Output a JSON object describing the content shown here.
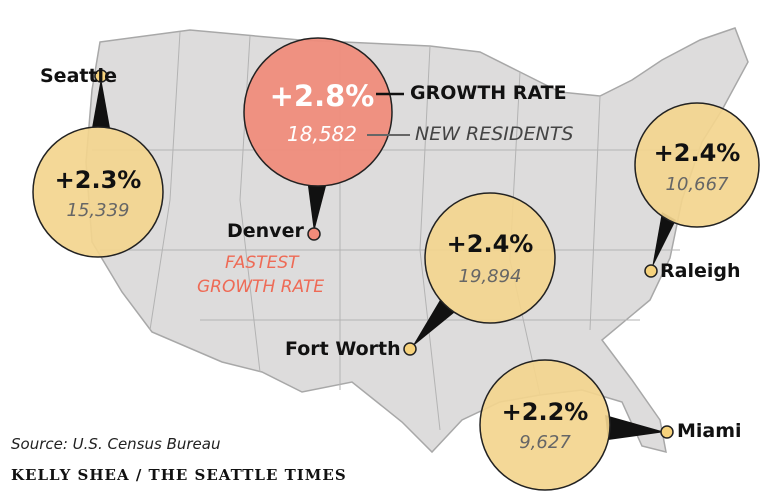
{
  "colors": {
    "map": "#dddcdc",
    "border": "#a8a8a8",
    "bubble": "#f3d58e",
    "highlight": "#f08b7a",
    "dot": "#f6d27c"
  },
  "legend": {
    "rate_label": "GROWTH RATE",
    "residents_label": "NEW RESIDENTS"
  },
  "highlight_note": {
    "line1": "FASTEST",
    "line2": "GROWTH RATE"
  },
  "cities": [
    {
      "name": "Seattle",
      "rate": "+2.3%",
      "residents": "15,339"
    },
    {
      "name": "Denver",
      "rate": "+2.8%",
      "residents": "18,582"
    },
    {
      "name": "Fort Worth",
      "rate": "+2.4%",
      "residents": "19,894"
    },
    {
      "name": "Raleigh",
      "rate": "+2.4%",
      "residents": "10,667"
    },
    {
      "name": "Miami",
      "rate": "+2.2%",
      "residents": "9,627"
    }
  ],
  "source": "Source: U.S. Census Bureau",
  "credit": "KELLY SHEA / THE SEATTLE TIMES"
}
